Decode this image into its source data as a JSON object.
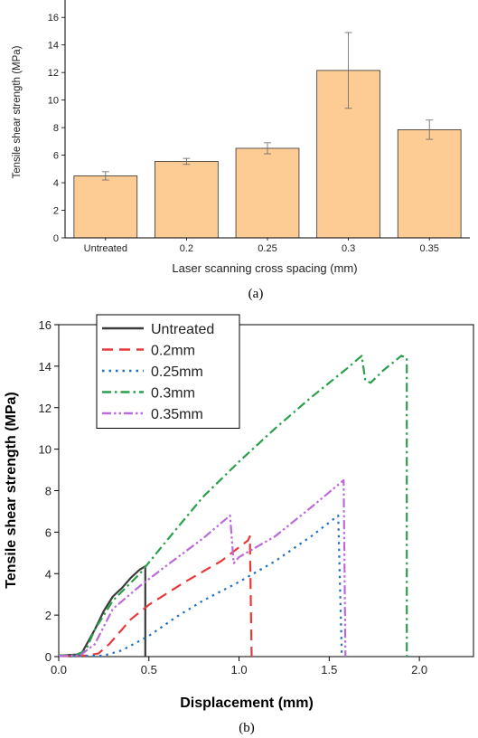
{
  "chart_data": [
    {
      "type": "bar",
      "panel_label": "(a)",
      "xlabel": "Laser scanning cross spacing (mm)",
      "ylabel": "Tensile shear strength (MPa)",
      "categories": [
        "Untreated",
        "0.2",
        "0.25",
        "0.3",
        "0.35"
      ],
      "values": [
        4.5,
        5.55,
        6.5,
        12.15,
        7.85
      ],
      "errors": [
        0.3,
        0.22,
        0.4,
        2.75,
        0.7
      ],
      "ylim": [
        0,
        17
      ],
      "yticks": [
        "0",
        "2",
        "4",
        "6",
        "8",
        "10",
        "12",
        "14",
        "16"
      ],
      "bar_color": "#fdcb94",
      "grid": false
    },
    {
      "type": "line",
      "panel_label": "(b)",
      "xlabel": "Displacement (mm)",
      "ylabel": "Tensile shear strength (MPa)",
      "xlim": [
        0,
        2.3
      ],
      "ylim": [
        0,
        16
      ],
      "xticks": [
        "0.0",
        "0.5",
        "1.0",
        "1.5",
        "2.0"
      ],
      "yticks": [
        "0",
        "2",
        "4",
        "6",
        "8",
        "10",
        "12",
        "14",
        "16"
      ],
      "legend_position": "top-left",
      "grid": false,
      "series": [
        {
          "name": "Untreated",
          "color": "#3a3a3a",
          "dash": "solid",
          "points": [
            [
              0,
              0.05
            ],
            [
              0.1,
              0.1
            ],
            [
              0.13,
              0.2
            ],
            [
              0.2,
              1.3
            ],
            [
              0.25,
              2.2
            ],
            [
              0.3,
              2.9
            ],
            [
              0.35,
              3.3
            ],
            [
              0.4,
              3.8
            ],
            [
              0.45,
              4.2
            ],
            [
              0.48,
              4.35
            ],
            [
              0.48,
              0
            ]
          ]
        },
        {
          "name": "0.2mm",
          "color": "#e8393a",
          "dash": "dash",
          "points": [
            [
              0,
              0.03
            ],
            [
              0.15,
              0.05
            ],
            [
              0.22,
              0.15
            ],
            [
              0.28,
              0.6
            ],
            [
              0.4,
              1.8
            ],
            [
              0.5,
              2.5
            ],
            [
              0.7,
              3.6
            ],
            [
              0.9,
              4.6
            ],
            [
              1.05,
              5.6
            ],
            [
              1.06,
              5.8
            ],
            [
              1.07,
              0
            ]
          ]
        },
        {
          "name": "0.25mm",
          "color": "#1f6fc4",
          "dash": "dot",
          "points": [
            [
              0,
              0.03
            ],
            [
              0.25,
              0.05
            ],
            [
              0.35,
              0.3
            ],
            [
              0.5,
              1.0
            ],
            [
              0.65,
              1.9
            ],
            [
              0.8,
              2.7
            ],
            [
              1.0,
              3.6
            ],
            [
              1.2,
              4.6
            ],
            [
              1.4,
              5.8
            ],
            [
              1.55,
              6.8
            ],
            [
              1.57,
              0
            ]
          ]
        },
        {
          "name": "0.3mm",
          "color": "#2aa04a",
          "dash": "dashdot",
          "points": [
            [
              0,
              0.05
            ],
            [
              0.1,
              0.08
            ],
            [
              0.15,
              0.3
            ],
            [
              0.2,
              1.3
            ],
            [
              0.3,
              2.7
            ],
            [
              0.45,
              4.0
            ],
            [
              0.6,
              5.6
            ],
            [
              0.8,
              7.7
            ],
            [
              1.0,
              9.4
            ],
            [
              1.2,
              11.0
            ],
            [
              1.4,
              12.5
            ],
            [
              1.6,
              13.9
            ],
            [
              1.68,
              14.5
            ],
            [
              1.7,
              13.3
            ],
            [
              1.73,
              13.2
            ],
            [
              1.8,
              13.8
            ],
            [
              1.9,
              14.5
            ],
            [
              1.93,
              14.4
            ],
            [
              1.93,
              0
            ]
          ]
        },
        {
          "name": "0.35mm",
          "color": "#bb6bd9",
          "dash": "dashdotdot",
          "points": [
            [
              0,
              0.03
            ],
            [
              0.12,
              0.06
            ],
            [
              0.2,
              0.6
            ],
            [
              0.3,
              2.3
            ],
            [
              0.45,
              3.4
            ],
            [
              0.6,
              4.4
            ],
            [
              0.8,
              5.7
            ],
            [
              0.95,
              6.8
            ],
            [
              0.97,
              4.5
            ],
            [
              1.0,
              4.8
            ],
            [
              1.2,
              5.8
            ],
            [
              1.4,
              7.2
            ],
            [
              1.58,
              8.5
            ],
            [
              1.59,
              0
            ]
          ]
        }
      ]
    }
  ]
}
